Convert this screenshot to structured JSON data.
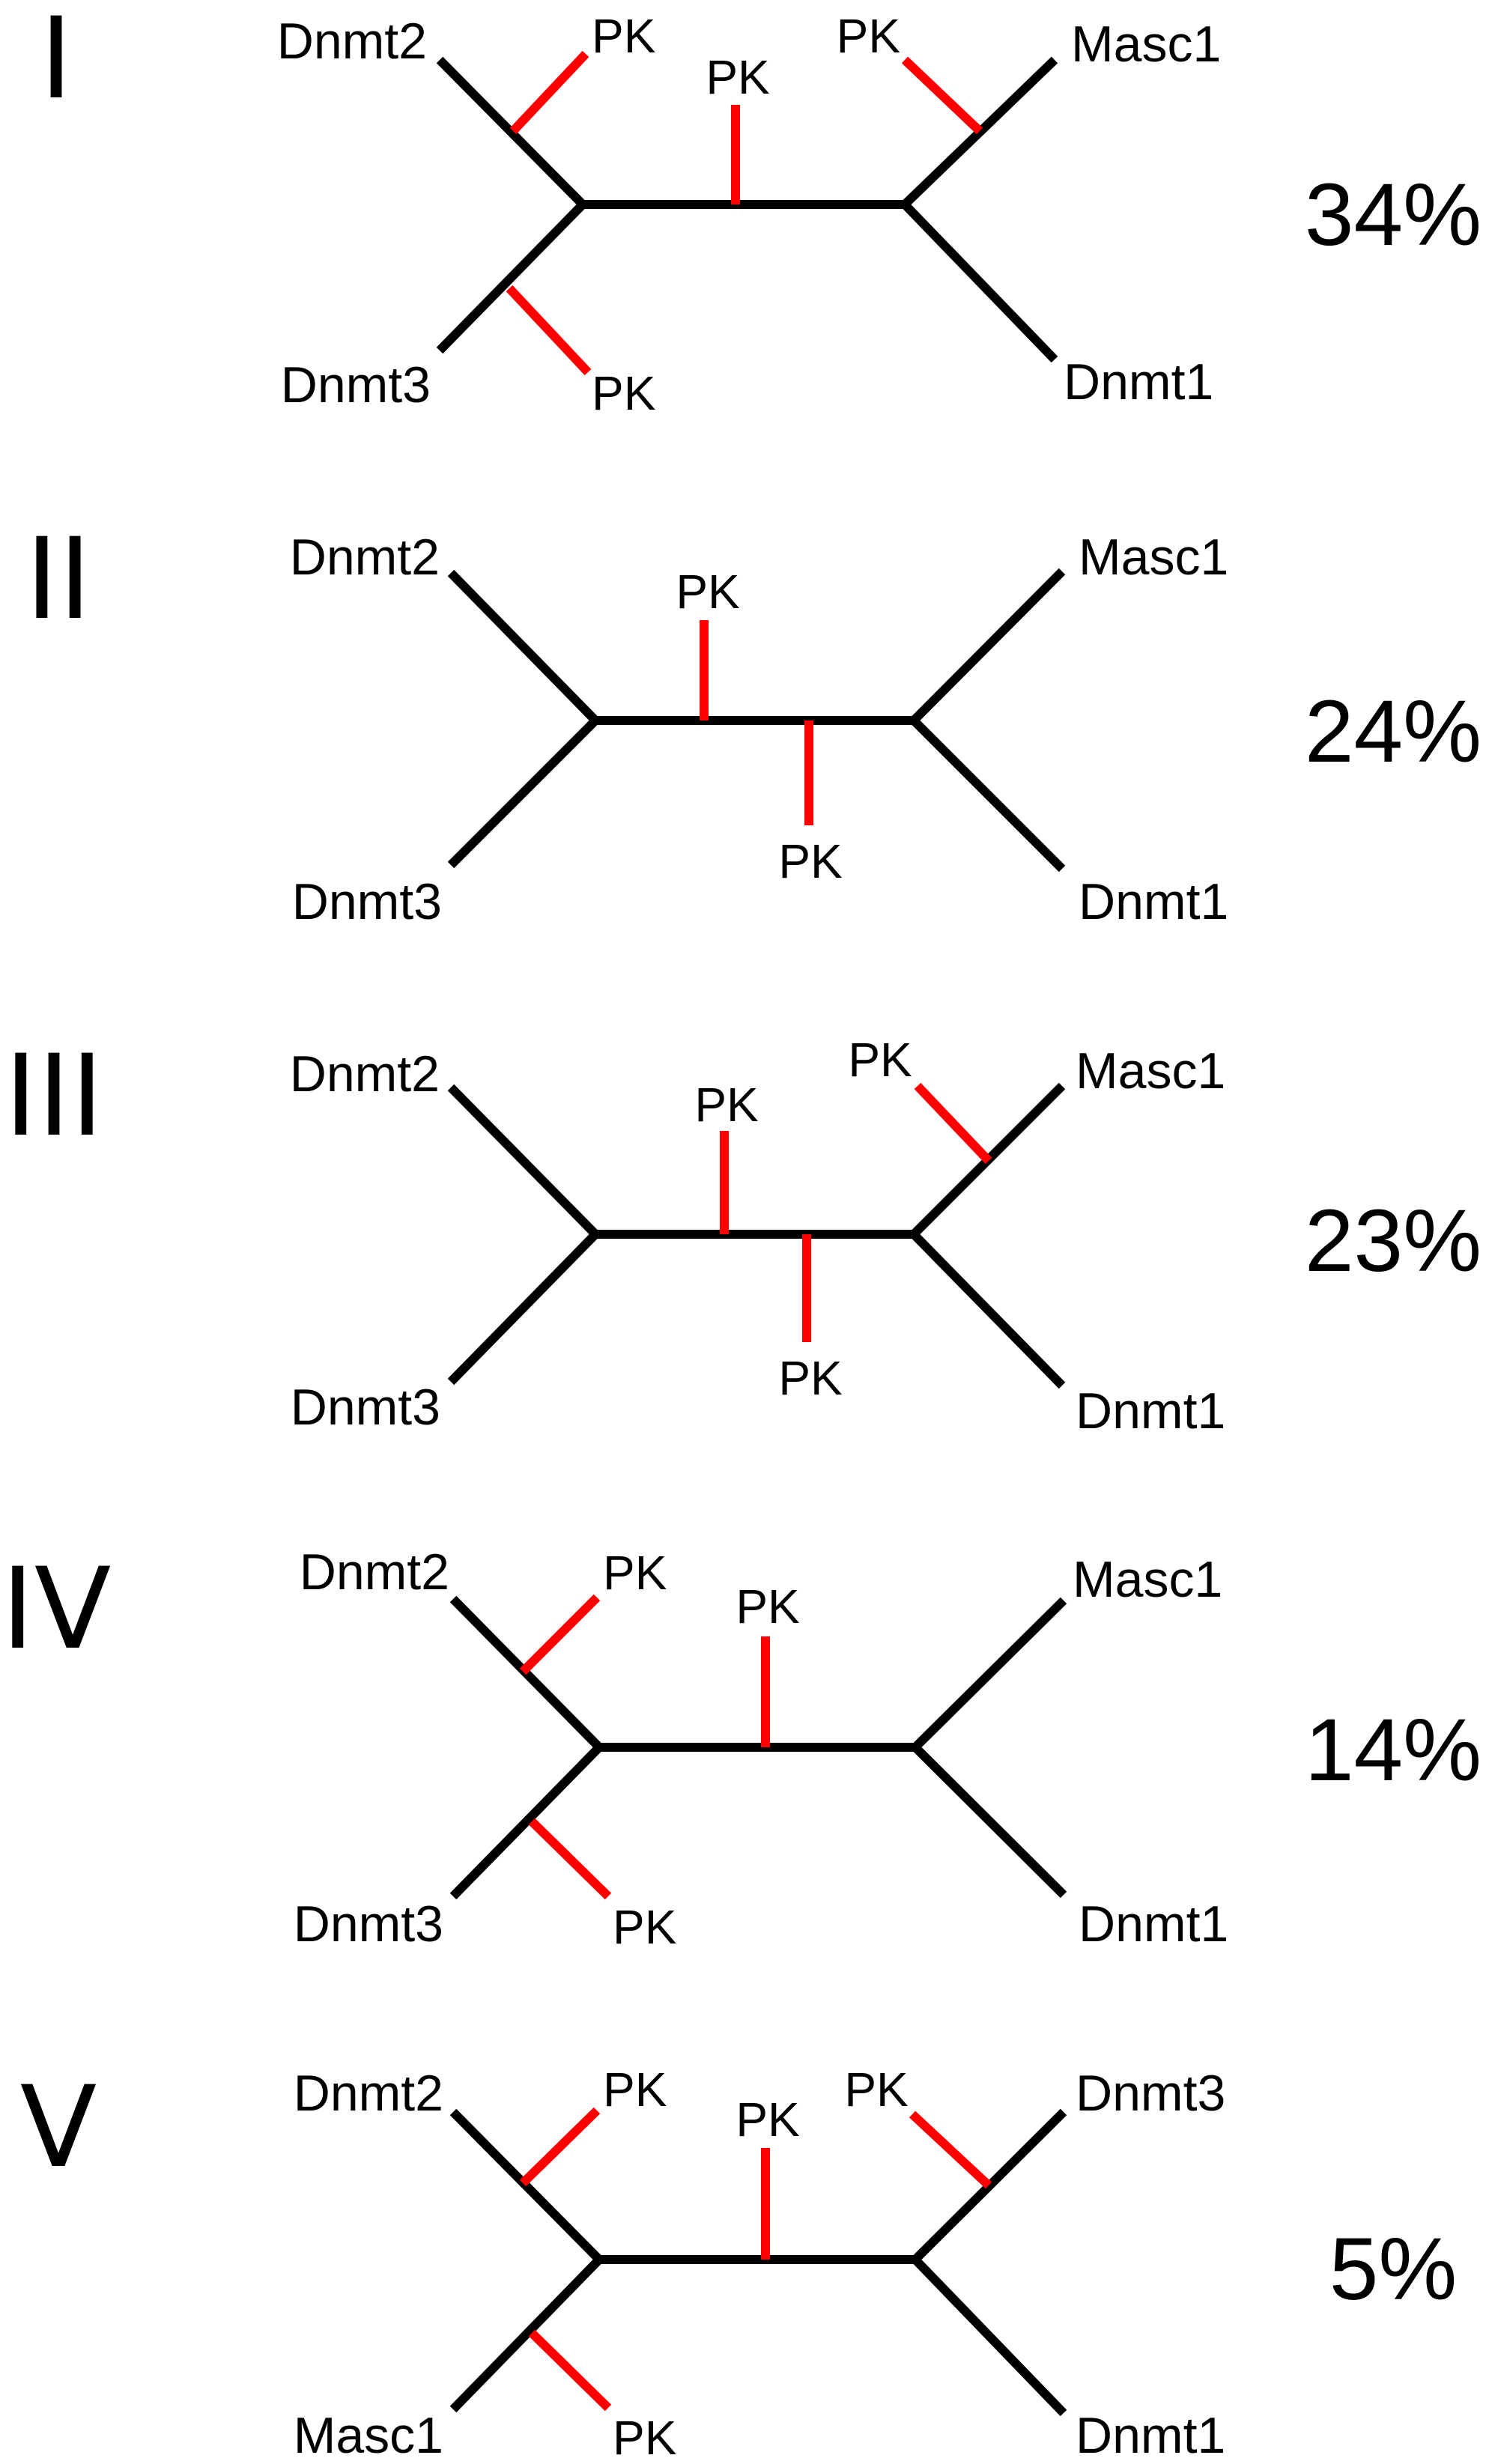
{
  "colors": {
    "branch": "#000000",
    "pk_branch": "#ff0000",
    "text": "#000000",
    "background": "#ffffff"
  },
  "trees": [
    {
      "numeral": "I",
      "percent": "34%",
      "leaves": {
        "upper_left": "Dnmt2",
        "lower_left": "Dnmt3",
        "upper_right": "Masc1",
        "lower_right": "Dnmt1"
      },
      "pk_labels": [
        "PK",
        "PK",
        "PK",
        "PK"
      ]
    },
    {
      "numeral": "II",
      "percent": "24%",
      "leaves": {
        "upper_left": "Dnmt2",
        "lower_left": "Dnmt3",
        "upper_right": "Masc1",
        "lower_right": "Dnmt1"
      },
      "pk_labels": [
        "PK",
        "PK"
      ]
    },
    {
      "numeral": "III",
      "percent": "23%",
      "leaves": {
        "upper_left": "Dnmt2",
        "lower_left": "Dnmt3",
        "upper_right": "Masc1",
        "lower_right": "Dnmt1"
      },
      "pk_labels": [
        "PK",
        "PK",
        "PK"
      ]
    },
    {
      "numeral": "IV",
      "percent": "14%",
      "leaves": {
        "upper_left": "Dnmt2",
        "lower_left": "Dnmt3",
        "upper_right": "Masc1",
        "lower_right": "Dnmt1"
      },
      "pk_labels": [
        "PK",
        "PK",
        "PK"
      ]
    },
    {
      "numeral": "V",
      "percent": "5%",
      "leaves": {
        "upper_left": "Dnmt2",
        "lower_left": "Masc1",
        "upper_right": "Dnmt3",
        "lower_right": "Dnmt1"
      },
      "pk_labels": [
        "PK",
        "PK",
        "PK",
        "PK"
      ]
    }
  ]
}
